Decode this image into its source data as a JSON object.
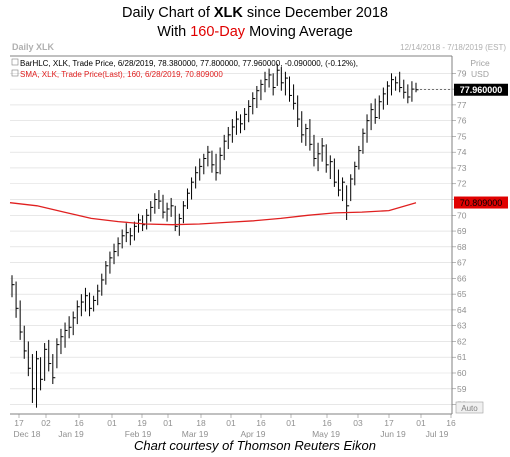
{
  "title": {
    "line1_pre": "Daily Chart of ",
    "line1_ticker": "XLK",
    "line1_post": " since December 2018",
    "line2_pre": "With ",
    "line2_highlight": "160-Day",
    "line2_post": " Moving Average"
  },
  "caption": "Chart courtesy of Thomson Reuters Eikon",
  "colors": {
    "price": "#000000",
    "sma": "#e02020",
    "sma_badge": "#e00000",
    "grid": "#d9d9d9"
  },
  "chart_data": {
    "type": "line",
    "header_left": "Daily XLK",
    "header_right": "12/14/2018 - 7/18/2019 (EST)",
    "axis_unit_line1": "Price",
    "axis_unit_line2": "USD",
    "auto_label": "Auto",
    "legend": [
      {
        "text": "BarHLC, XLK, Trade Price, 6/28/2019, 78.380000, 77.800000, 77.960000, -0.090000, (-0.12%),",
        "color": "#000000"
      },
      {
        "text": "SMA, XLK, Trade Price(Last),  160, 6/28/2019, 70.809000",
        "color": "#e02020"
      }
    ],
    "last_price_label": "77.960000",
    "last_price": 77.96,
    "sma_label": "70.809000",
    "sma_last": 70.809,
    "ylim": [
      57.4,
      80.1
    ],
    "y_ticks": [
      58,
      59,
      60,
      61,
      62,
      63,
      64,
      65,
      66,
      67,
      68,
      69,
      70,
      71,
      72,
      73,
      74,
      75,
      76,
      77,
      78,
      79
    ],
    "x_ticks": [
      "17",
      "02",
      "16",
      "01",
      "19",
      "01",
      "18",
      "01",
      "16",
      "01",
      "16",
      "03",
      "17",
      "01",
      "16"
    ],
    "x_months": [
      "Dec 18",
      "Jan 19",
      "Feb 19",
      "Mar 19",
      "Apr 19",
      "May 19",
      "Jun 19",
      "Jul 19"
    ],
    "ohlc_hlc": [
      [
        66.2,
        64.8,
        65.6
      ],
      [
        65.8,
        63.5,
        64.1
      ],
      [
        64.6,
        62.1,
        62.6
      ],
      [
        63.0,
        60.9,
        61.4
      ],
      [
        62.0,
        59.8,
        60.3
      ],
      [
        61.2,
        58.1,
        59.0
      ],
      [
        61.4,
        57.8,
        60.9
      ],
      [
        61.0,
        58.9,
        59.6
      ],
      [
        61.9,
        59.5,
        61.5
      ],
      [
        62.1,
        60.1,
        60.6
      ],
      [
        61.2,
        59.3,
        59.7
      ],
      [
        62.2,
        60.3,
        61.8
      ],
      [
        62.8,
        61.2,
        62.3
      ],
      [
        63.2,
        61.6,
        62.7
      ],
      [
        63.6,
        62.2,
        62.9
      ],
      [
        63.9,
        62.4,
        63.5
      ],
      [
        64.6,
        63.1,
        64.2
      ],
      [
        65.0,
        63.6,
        64.5
      ],
      [
        65.4,
        63.9,
        64.9
      ],
      [
        65.1,
        63.6,
        64.1
      ],
      [
        64.9,
        63.9,
        64.6
      ],
      [
        65.6,
        64.3,
        65.2
      ],
      [
        66.3,
        64.9,
        65.9
      ],
      [
        67.1,
        65.6,
        66.8
      ],
      [
        67.7,
        66.3,
        67.3
      ],
      [
        68.2,
        66.9,
        67.7
      ],
      [
        68.6,
        67.4,
        68.2
      ],
      [
        69.1,
        67.9,
        68.7
      ],
      [
        69.5,
        68.3,
        68.9
      ],
      [
        69.2,
        68.1,
        68.7
      ],
      [
        69.6,
        68.4,
        69.3
      ],
      [
        70.1,
        68.9,
        69.7
      ],
      [
        70.0,
        69.0,
        69.4
      ],
      [
        70.4,
        69.1,
        70.0
      ],
      [
        70.9,
        69.6,
        70.5
      ],
      [
        71.4,
        70.1,
        71.0
      ],
      [
        71.6,
        70.4,
        70.9
      ],
      [
        71.3,
        69.8,
        70.2
      ],
      [
        70.8,
        69.6,
        70.4
      ],
      [
        71.1,
        69.9,
        70.6
      ],
      [
        70.6,
        69.0,
        69.3
      ],
      [
        70.1,
        68.7,
        69.8
      ],
      [
        70.9,
        69.5,
        70.6
      ],
      [
        71.7,
        70.4,
        71.4
      ],
      [
        72.4,
        71.0,
        72.1
      ],
      [
        73.1,
        71.7,
        72.7
      ],
      [
        73.6,
        72.2,
        73.1
      ],
      [
        73.9,
        72.6,
        73.6
      ],
      [
        74.4,
        73.1,
        74.0
      ],
      [
        74.1,
        72.7,
        73.2
      ],
      [
        73.9,
        72.2,
        72.7
      ],
      [
        74.3,
        72.6,
        73.8
      ],
      [
        75.1,
        73.5,
        74.7
      ],
      [
        75.6,
        74.2,
        75.1
      ],
      [
        76.1,
        74.6,
        75.6
      ],
      [
        76.6,
        75.1,
        76.1
      ],
      [
        76.4,
        75.2,
        75.8
      ],
      [
        76.8,
        75.4,
        76.4
      ],
      [
        77.3,
        75.9,
        76.9
      ],
      [
        77.8,
        76.4,
        77.4
      ],
      [
        78.2,
        76.8,
        77.9
      ],
      [
        78.6,
        77.3,
        78.3
      ],
      [
        79.1,
        77.8,
        78.6
      ],
      [
        79.3,
        78.1,
        78.9
      ],
      [
        79.0,
        77.6,
        78.1
      ],
      [
        79.6,
        78.2,
        79.2
      ],
      [
        79.4,
        77.9,
        78.4
      ],
      [
        79.1,
        77.6,
        78.7
      ],
      [
        78.8,
        77.2,
        77.6
      ],
      [
        78.3,
        76.7,
        77.1
      ],
      [
        77.6,
        75.6,
        76.1
      ],
      [
        76.6,
        74.6,
        75.1
      ],
      [
        75.8,
        74.4,
        75.5
      ],
      [
        76.1,
        74.1,
        74.5
      ],
      [
        75.1,
        73.1,
        73.6
      ],
      [
        74.6,
        72.8,
        73.9
      ],
      [
        74.9,
        73.4,
        74.4
      ],
      [
        74.5,
        72.7,
        73.2
      ],
      [
        73.8,
        72.3,
        73.4
      ],
      [
        73.6,
        71.8,
        72.1
      ],
      [
        72.9,
        71.2,
        71.6
      ],
      [
        72.4,
        70.9,
        72.1
      ],
      [
        71.9,
        69.7,
        70.6
      ],
      [
        72.6,
        70.9,
        72.3
      ],
      [
        73.4,
        71.9,
        73.1
      ],
      [
        74.4,
        72.9,
        74.1
      ],
      [
        75.5,
        73.9,
        75.2
      ],
      [
        76.4,
        74.6,
        76.0
      ],
      [
        77.1,
        75.4,
        76.7
      ],
      [
        77.4,
        75.8,
        76.2
      ],
      [
        77.6,
        76.1,
        77.2
      ],
      [
        78.1,
        76.7,
        77.7
      ],
      [
        78.5,
        77.0,
        78.2
      ],
      [
        79.0,
        77.6,
        78.6
      ],
      [
        78.8,
        77.9,
        78.4
      ],
      [
        79.1,
        77.8,
        78.1
      ],
      [
        78.6,
        77.4,
        77.8
      ],
      [
        78.3,
        77.1,
        77.5
      ],
      [
        78.5,
        77.2,
        78.0
      ],
      [
        78.4,
        77.8,
        77.96
      ]
    ],
    "sma_values": [
      70.8,
      70.6,
      70.2,
      69.8,
      69.6,
      69.45,
      69.4,
      69.45,
      69.55,
      69.65,
      69.8,
      70.0,
      70.15,
      70.2,
      70.3,
      70.8
    ]
  }
}
